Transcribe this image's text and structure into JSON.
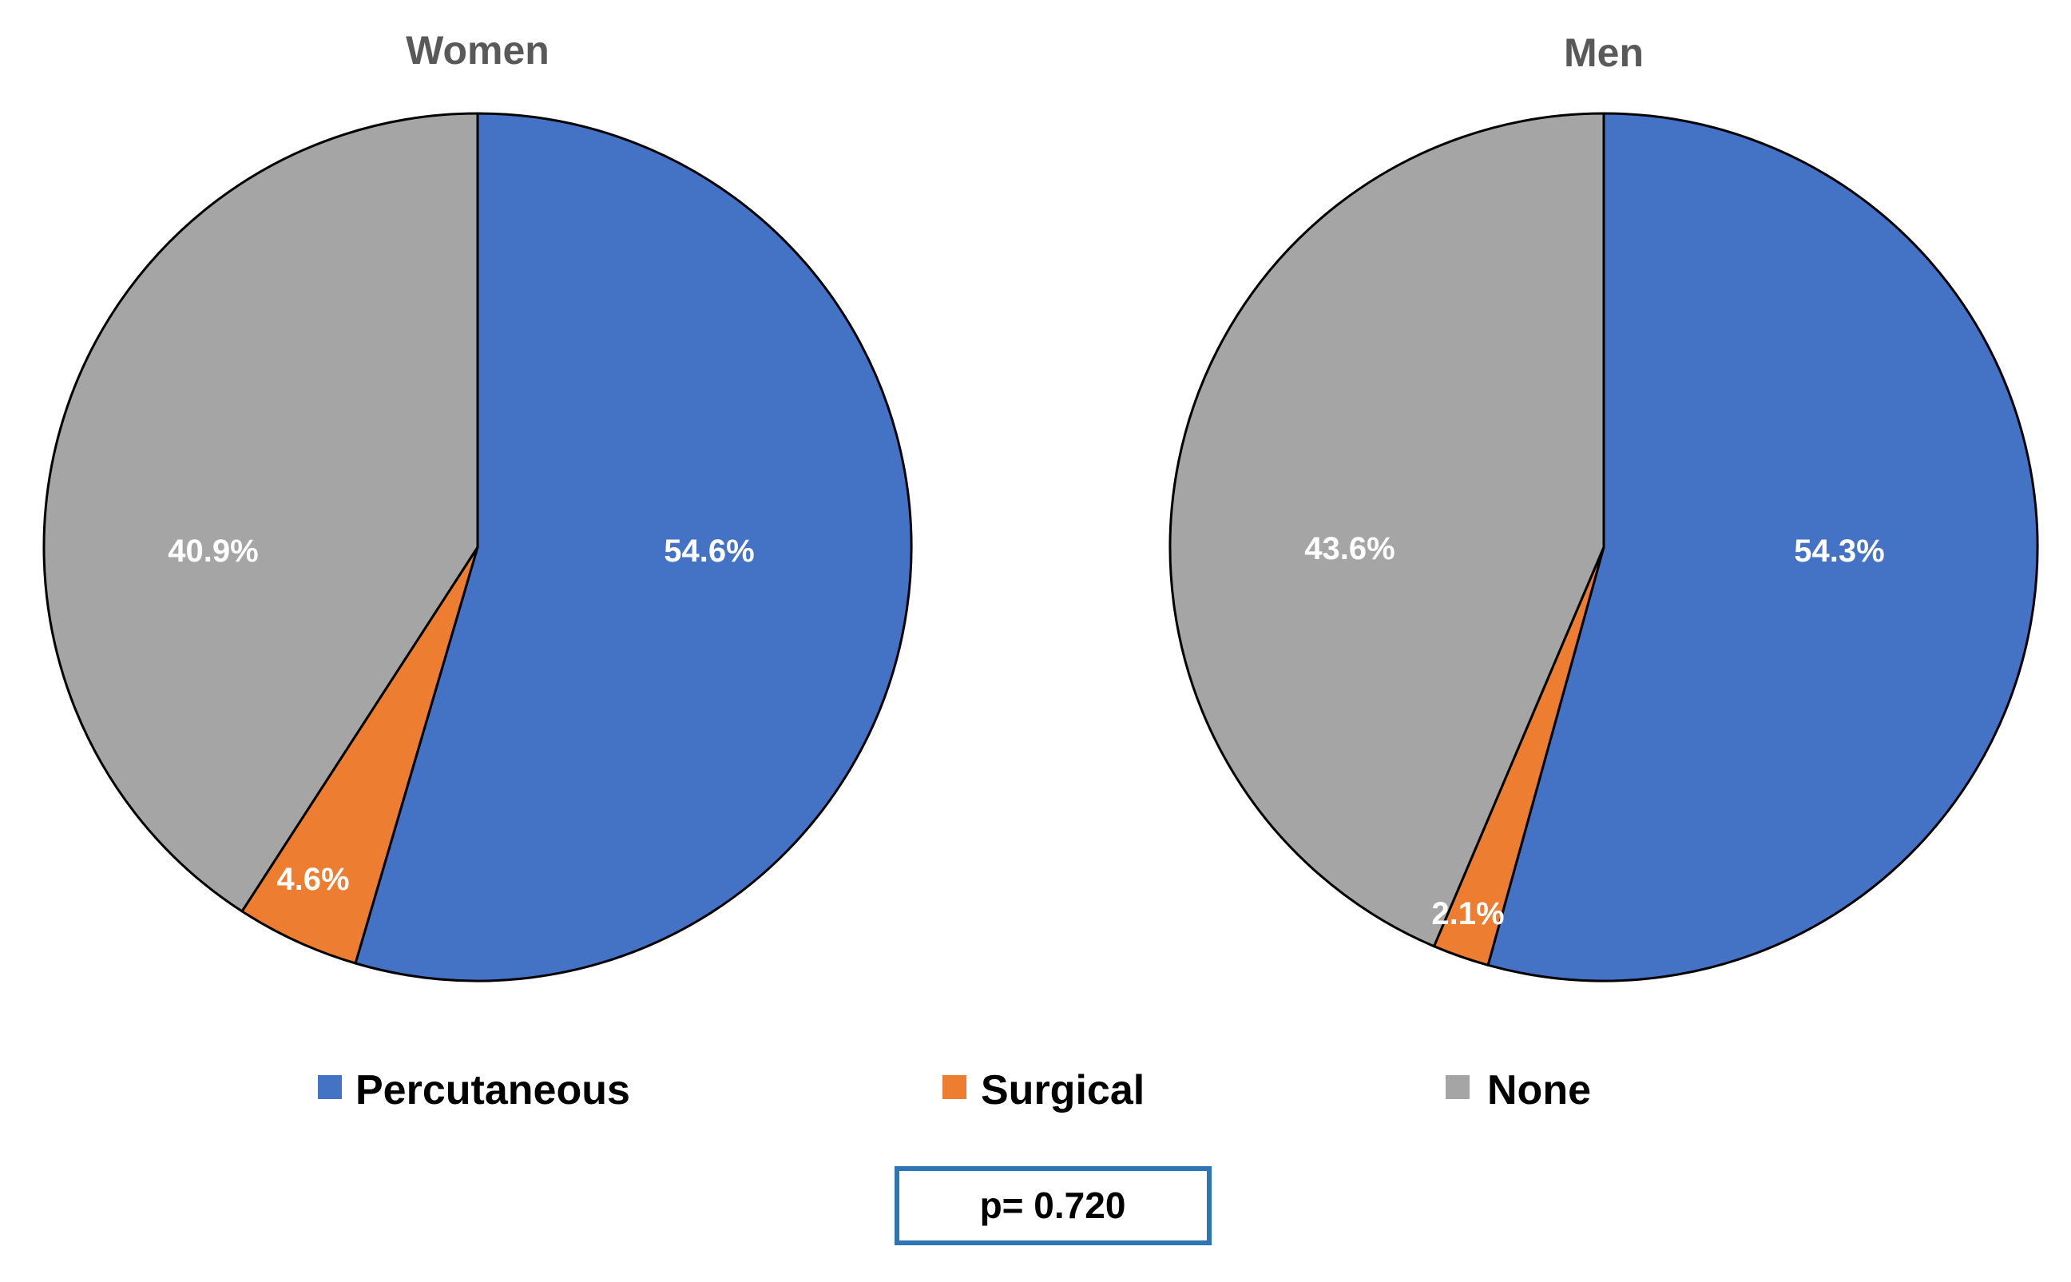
{
  "chart_data": [
    {
      "type": "pie",
      "title": "Women",
      "slices": [
        {
          "label": "Percutaneous",
          "value": 54.6,
          "display": "54.6%"
        },
        {
          "label": "Surgical",
          "value": 4.6,
          "display": "4.6%"
        },
        {
          "label": "None",
          "value": 40.9,
          "display": "40.9%"
        }
      ]
    },
    {
      "type": "pie",
      "title": "Men",
      "slices": [
        {
          "label": "Percutaneous",
          "value": 54.3,
          "display": "54.3%"
        },
        {
          "label": "Surgical",
          "value": 2.1,
          "display": "2.1%"
        },
        {
          "label": "None",
          "value": 43.6,
          "display": "43.6%"
        }
      ]
    }
  ],
  "legend": {
    "position": "bottom",
    "items": [
      {
        "label": "Percutaneous",
        "color": "#4472C4"
      },
      {
        "label": "Surgical",
        "color": "#ED7D31"
      },
      {
        "label": "None",
        "color": "#A5A5A5"
      }
    ]
  },
  "colors": {
    "Percutaneous": "#4472C4",
    "Surgical": "#ED7D31",
    "None": "#A5A5A5",
    "slice_border": "#000000",
    "pvalue_border": "#2E75B6"
  },
  "pvalue": {
    "text": "p= 0.720"
  }
}
